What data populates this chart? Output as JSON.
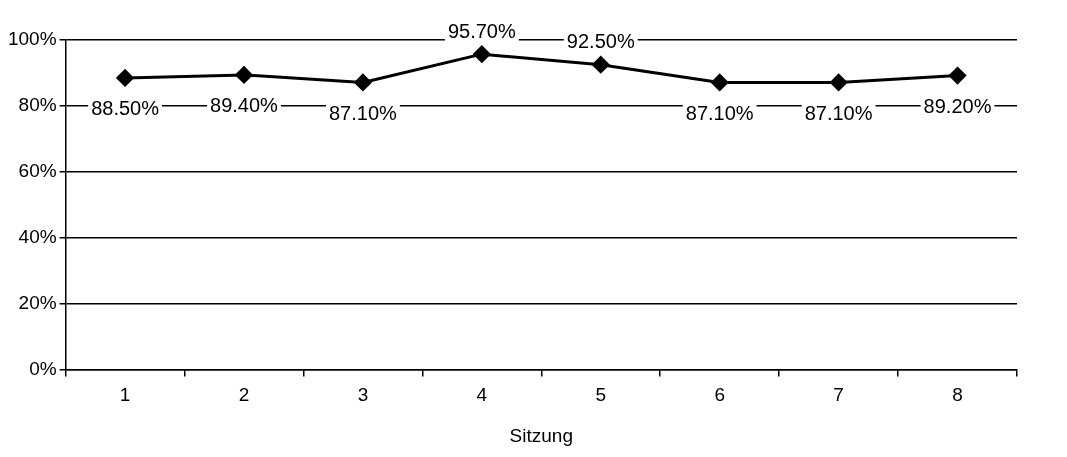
{
  "chart_data": {
    "type": "line",
    "xlabel": "Sitzung",
    "categories": [
      "1",
      "2",
      "3",
      "4",
      "5",
      "6",
      "7",
      "8"
    ],
    "series": [
      {
        "color": "#000000",
        "values": [
          88.5,
          89.4,
          87.1,
          95.7,
          92.5,
          87.1,
          87.1,
          89.2
        ],
        "value_labels": [
          "88.50%",
          "89.40%",
          "87.10%",
          "95.70%",
          "92.50%",
          "87.10%",
          "87.10%",
          "89.20%"
        ]
      }
    ],
    "ylim": [
      0,
      100
    ],
    "yticks": [
      {
        "value": 0,
        "label": "0%"
      },
      {
        "value": 20,
        "label": "20%"
      },
      {
        "value": 40,
        "label": "40%"
      },
      {
        "value": 60,
        "label": "60%"
      },
      {
        "value": 80,
        "label": "80%"
      },
      {
        "value": 100,
        "label": "100%"
      }
    ],
    "grid": "y",
    "legend": false,
    "marker": "diamond",
    "line_style": "solid"
  }
}
